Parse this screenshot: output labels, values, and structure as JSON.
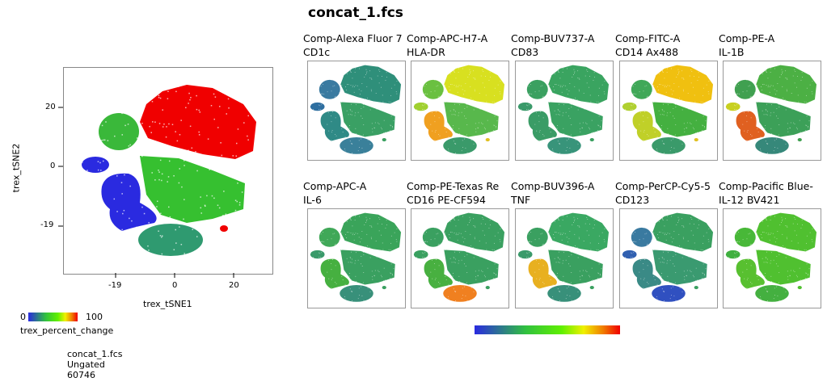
{
  "title": "concat_1.fcs",
  "main_plot": {
    "xlabel": "trex_tSNE1",
    "ylabel": "trex_tSNE2",
    "xticks": [
      "-19",
      "0",
      "20"
    ],
    "yticks": [
      "20",
      "0",
      "-19"
    ],
    "colorbar": {
      "min": "0",
      "max": "100",
      "label": "trex_percent_change"
    },
    "info": [
      "concat_1.fcs",
      "Ungated",
      "60746"
    ],
    "cluster_colors": [
      "#f00000",
      "#3ab83a",
      "#2a2ae0",
      "#2a2ae0",
      "#36c030",
      "#2f9a70",
      "#f00000"
    ]
  },
  "chart_data": {
    "type": "scatter",
    "title": "concat_1.fcs",
    "xlabel": "trex_tSNE1",
    "ylabel": "trex_tSNE2",
    "xticks": [
      -19,
      0,
      20
    ],
    "yticks": [
      -19,
      0,
      20
    ],
    "xlim": [
      -35,
      32
    ],
    "ylim": [
      -32,
      33
    ],
    "color_by": "trex_percent_change",
    "color_range": [
      0,
      100
    ],
    "events": 60746
  },
  "panels": [
    {
      "line1": "Comp-Alexa Fluor 7",
      "line2": "CD1c",
      "colors": [
        "#2f8f7a",
        "#3a7aa0",
        "#2f6fa0",
        "#2f8a86",
        "#3aa064",
        "#3a809a",
        "#3aa060"
      ]
    },
    {
      "line1": "Comp-APC-H7-A",
      "line2": "HLA-DR",
      "colors": [
        "#d8e020",
        "#6ac040",
        "#a0d030",
        "#f0a020",
        "#58b84c",
        "#3a9a6a",
        "#e0c020"
      ]
    },
    {
      "line1": "Comp-BUV737-A",
      "line2": "CD83",
      "colors": [
        "#3aa460",
        "#3aa060",
        "#3a9a6a",
        "#3a9c66",
        "#3aa262",
        "#38947a",
        "#3aa060"
      ]
    },
    {
      "line1": "Comp-FITC-A",
      "line2": "CD14 Ax488",
      "colors": [
        "#f0c010",
        "#40a858",
        "#b0d030",
        "#c0d028",
        "#44b040",
        "#3a9a6a",
        "#e0c020"
      ]
    },
    {
      "line1": "Comp-PE-A",
      "line2": "IL-1B",
      "colors": [
        "#4cb044",
        "#40a050",
        "#c8d020",
        "#e06020",
        "#3ca058",
        "#36887a",
        "#40a050"
      ]
    },
    {
      "line1": "Comp-APC-A",
      "line2": "IL-6",
      "colors": [
        "#3aa45a",
        "#40a858",
        "#3a9a6a",
        "#46b040",
        "#3aa060",
        "#38907a",
        "#3aa060"
      ]
    },
    {
      "line1": "Comp-PE-Texas Re",
      "line2": "CD16 PE-CF594",
      "colors": [
        "#3aa060",
        "#3aa060",
        "#3aa060",
        "#48b040",
        "#3aa060",
        "#f08020",
        "#3aa060"
      ]
    },
    {
      "line1": "Comp-BUV396-A",
      "line2": "TNF",
      "colors": [
        "#3aa862",
        "#3aa060",
        "#3a9a6a",
        "#e8b020",
        "#3aa060",
        "#38907a",
        "#3aa060"
      ]
    },
    {
      "line1": "Comp-PerCP-Cy5-5",
      "line2": "CD123",
      "colors": [
        "#3aa060",
        "#3a7aa0",
        "#3060b0",
        "#3a8a86",
        "#3a9a70",
        "#3050c0",
        "#3aa060"
      ]
    },
    {
      "line1": "Comp-Pacific Blue-",
      "line2": "IL-12 BV421",
      "colors": [
        "#50c030",
        "#48b838",
        "#40b040",
        "#58c030",
        "#50c030",
        "#44b040",
        "#50c030"
      ]
    }
  ]
}
